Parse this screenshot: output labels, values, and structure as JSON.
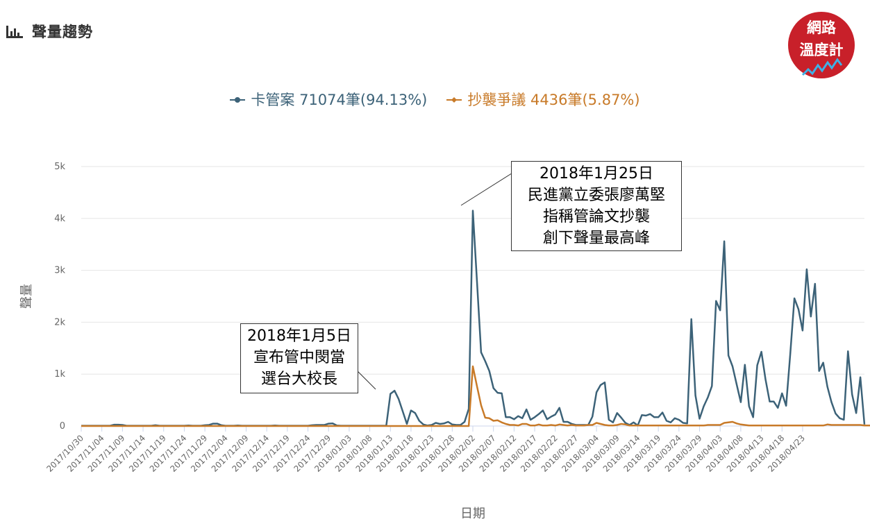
{
  "header": {
    "title": "聲量趨勢",
    "icon": "bar-chart-icon"
  },
  "logo": {
    "line1": "網路",
    "line2": "溫度計",
    "color": "#c8202a"
  },
  "legend": [
    {
      "label": "卡管案 71074筆(94.13%)",
      "color": "#3c6278"
    },
    {
      "label": "抄襲爭議 4436筆(5.87%)",
      "color": "#c87a28"
    }
  ],
  "annotations": [
    {
      "lines": [
        "2018年1月5日",
        "宣布管中閔當",
        "選台大校長"
      ]
    },
    {
      "lines": [
        "2018年1月25日",
        "民進黨立委張廖萬堅",
        "指稱管論文抄襲",
        "創下聲量最高峰"
      ]
    }
  ],
  "chart_data": {
    "type": "line",
    "xlabel": "日期",
    "ylabel": "聲量",
    "ylim": [
      0,
      5000
    ],
    "yticks": [
      "0",
      "1k",
      "2k",
      "3k",
      "4k",
      "5k"
    ],
    "x_start": "2017/10/30",
    "x_end": "2018/04/27",
    "x_tick_labels": [
      "2017/10/30",
      "2017/11/04",
      "2017/11/09",
      "2017/11/14",
      "2017/11/19",
      "2017/11/24",
      "2017/11/29",
      "2017/12/04",
      "2017/12/09",
      "2017/12/14",
      "2017/12/19",
      "2017/12/24",
      "2017/12/29",
      "2018/01/03",
      "2018/01/08",
      "2018/01/13",
      "2018/01/18",
      "2018/01/23",
      "2018/01/28",
      "2018/02/02",
      "2018/02/07",
      "2018/02/12",
      "2018/02/17",
      "2018/02/22",
      "2018/02/27",
      "2018/03/04",
      "2018/03/09",
      "2018/03/14",
      "2018/03/19",
      "2018/03/24",
      "2018/03/29",
      "2018/04/03",
      "2018/04/08",
      "2018/04/13",
      "2018/04/18",
      "2018/04/23"
    ],
    "grid": true,
    "series": [
      {
        "name": "卡管案",
        "color": "#3c6278",
        "values": [
          5,
          5,
          5,
          5,
          5,
          5,
          5,
          5,
          25,
          25,
          20,
          5,
          5,
          5,
          5,
          5,
          5,
          5,
          15,
          5,
          5,
          5,
          5,
          5,
          5,
          5,
          10,
          5,
          5,
          5,
          15,
          20,
          45,
          45,
          15,
          5,
          5,
          5,
          10,
          5,
          5,
          5,
          5,
          5,
          5,
          5,
          5,
          10,
          5,
          5,
          5,
          5,
          5,
          5,
          5,
          5,
          15,
          20,
          20,
          20,
          45,
          50,
          10,
          5,
          5,
          5,
          5,
          5,
          5,
          5,
          5,
          5,
          5,
          5,
          5,
          620,
          680,
          520,
          280,
          40,
          300,
          250,
          100,
          30,
          10,
          20,
          60,
          40,
          50,
          80,
          30,
          20,
          20,
          80,
          330,
          4150,
          2800,
          1420,
          1250,
          1060,
          730,
          640,
          630,
          170,
          170,
          130,
          190,
          150,
          320,
          120,
          170,
          230,
          300,
          130,
          180,
          220,
          350,
          80,
          80,
          40,
          20,
          20,
          20,
          20,
          180,
          650,
          790,
          840,
          120,
          70,
          250,
          160,
          60,
          20,
          70,
          10,
          210,
          200,
          230,
          170,
          170,
          260,
          100,
          70,
          150,
          120,
          60,
          50,
          2060,
          590,
          140,
          380,
          550,
          770,
          2410,
          2230,
          3560,
          1360,
          1150,
          800,
          460,
          1180,
          380,
          170,
          1170,
          1430,
          900,
          470,
          470,
          350,
          630,
          390,
          1380,
          2460,
          2250,
          1840,
          3020,
          2110,
          2740,
          1060,
          1220,
          760,
          460,
          240,
          150,
          120,
          1440,
          610,
          250,
          940,
          30
        ]
      },
      {
        "name": "抄襲爭議",
        "color": "#c87a28",
        "values": [
          0,
          0,
          0,
          0,
          0,
          0,
          0,
          0,
          0,
          0,
          0,
          0,
          0,
          0,
          0,
          0,
          0,
          0,
          0,
          0,
          0,
          0,
          0,
          0,
          0,
          0,
          0,
          0,
          0,
          0,
          0,
          0,
          0,
          0,
          0,
          0,
          0,
          0,
          0,
          0,
          0,
          0,
          0,
          0,
          0,
          0,
          0,
          0,
          0,
          0,
          0,
          0,
          0,
          0,
          0,
          0,
          0,
          0,
          0,
          0,
          0,
          0,
          0,
          0,
          0,
          0,
          0,
          0,
          0,
          0,
          0,
          0,
          0,
          0,
          0,
          0,
          0,
          0,
          0,
          0,
          0,
          0,
          0,
          0,
          0,
          0,
          0,
          0,
          0,
          0,
          0,
          0,
          0,
          0,
          0,
          1150,
          770,
          400,
          160,
          150,
          100,
          110,
          70,
          40,
          20,
          20,
          10,
          40,
          40,
          10,
          10,
          30,
          10,
          10,
          20,
          10,
          30,
          20,
          10,
          20,
          10,
          10,
          10,
          20,
          20,
          60,
          40,
          20,
          10,
          10,
          20,
          40,
          30,
          10,
          10,
          10,
          10,
          10,
          10,
          10,
          10,
          10,
          10,
          10,
          10,
          10,
          10,
          10,
          10,
          10,
          10,
          10,
          20,
          20,
          20,
          20,
          60,
          70,
          80,
          50,
          30,
          20,
          10,
          10,
          10,
          10,
          10,
          10,
          10,
          10,
          10,
          10,
          10,
          10,
          10,
          10,
          10,
          10,
          10,
          10,
          10,
          30,
          20,
          20,
          20,
          20,
          20,
          20,
          20,
          20,
          10,
          10,
          10,
          10,
          10,
          10,
          30,
          10
        ]
      }
    ]
  }
}
